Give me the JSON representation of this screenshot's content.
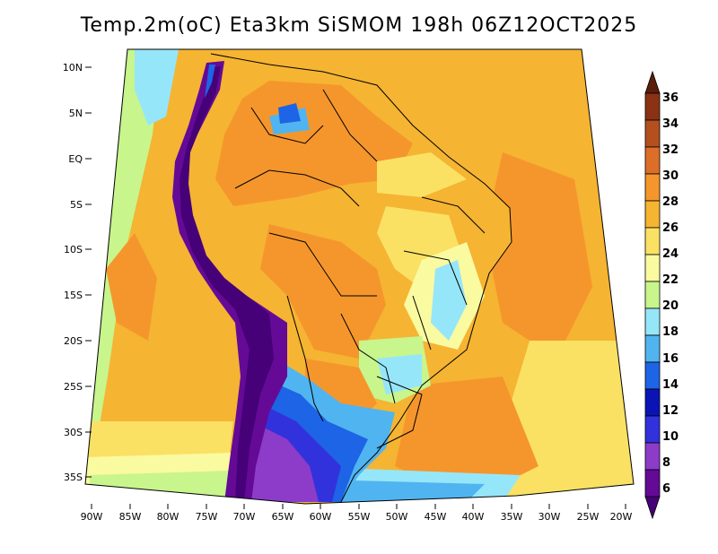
{
  "title": "Temp.2m(oC) Eta3km SiSMOM 198h 06Z12OCT2025",
  "map": {
    "lat_labels": [
      "10N",
      "5N",
      "EQ",
      "5S",
      "10S",
      "15S",
      "20S",
      "25S",
      "30S",
      "35S"
    ],
    "lon_labels": [
      "90W",
      "85W",
      "80W",
      "75W",
      "70W",
      "65W",
      "60W",
      "55W",
      "50W",
      "45W",
      "40W",
      "35W",
      "30W",
      "25W",
      "20W"
    ],
    "field": "2 m temperature",
    "units": "oC"
  },
  "colorbar": {
    "labels": [
      "36",
      "34",
      "32",
      "30",
      "28",
      "26",
      "24",
      "22",
      "20",
      "18",
      "16",
      "14",
      "12",
      "10",
      "8",
      "6"
    ],
    "colors": [
      "#5a1e0a",
      "#8b3214",
      "#b4501e",
      "#dc6e28",
      "#f5962d",
      "#f5b432",
      "#fae164",
      "#fafaa0",
      "#c8f58c",
      "#96e6fa",
      "#50b4f0",
      "#1e64e6",
      "#0a14b4",
      "#3232dc",
      "#8c3cc8",
      "#640a96",
      "#460078"
    ]
  }
}
